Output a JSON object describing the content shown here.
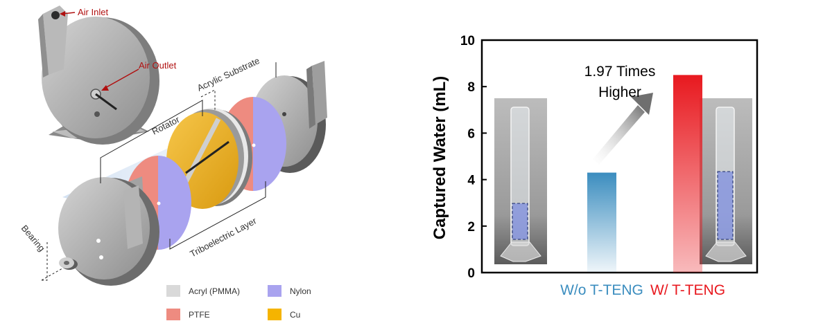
{
  "diagram": {
    "labels": {
      "air_inlet": "Air Inlet",
      "air_outlet": "Air Outlet",
      "acrylic_substrate": "Acrylic Substrate",
      "rotator": "Rotator",
      "triboelectric_layer": "Triboelectric Layer",
      "bearing": "Bearing"
    },
    "legend": [
      {
        "label": "Acryl (PMMA)",
        "color": "#d9d9d9"
      },
      {
        "label": "Nylon",
        "color": "#a9a3ef"
      },
      {
        "label": "PTFE",
        "color": "#ee8b80"
      },
      {
        "label": "Cu",
        "color": "#f5b400"
      }
    ]
  },
  "chart_data": {
    "type": "bar",
    "categories": [
      "W/o T-TENG",
      "W/ T-TENG"
    ],
    "values": [
      4.3,
      8.5
    ],
    "category_colors": [
      "#3b8dbf",
      "#e8191f"
    ],
    "ylabel": "Captured Water (mL)",
    "ylim": [
      0,
      10
    ],
    "yticks": [
      "0",
      "2",
      "4",
      "6",
      "8",
      "10"
    ],
    "annotation": {
      "line1": "1.97 Times",
      "line2": "Higher"
    },
    "grid": false
  }
}
